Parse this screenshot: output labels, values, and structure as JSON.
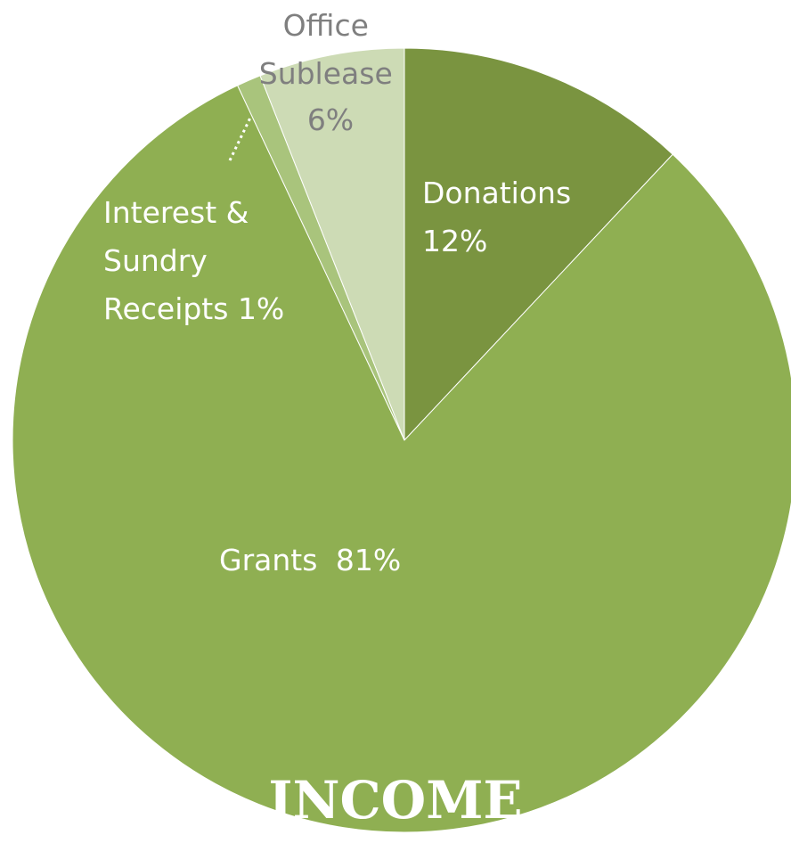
{
  "chart_data": {
    "type": "pie",
    "title": "INCOME",
    "legend": "none",
    "slices": [
      {
        "category": "Donations",
        "value": 12,
        "value_label": "12%",
        "color": "#7a9440"
      },
      {
        "category": "Grants",
        "value": 81,
        "value_label": "81%",
        "color": "#8faf52"
      },
      {
        "category": "Interest & Sundry Receipts",
        "value": 1,
        "value_label": "1%",
        "color": "#a9c47c"
      },
      {
        "category": "Office Sublease",
        "value": 6,
        "value_label": "6%",
        "color": "#cddbb5"
      }
    ],
    "colors": {
      "label_light": "#ffffff",
      "label_muted": "#7f7f7f",
      "title": "#ffffff"
    }
  }
}
